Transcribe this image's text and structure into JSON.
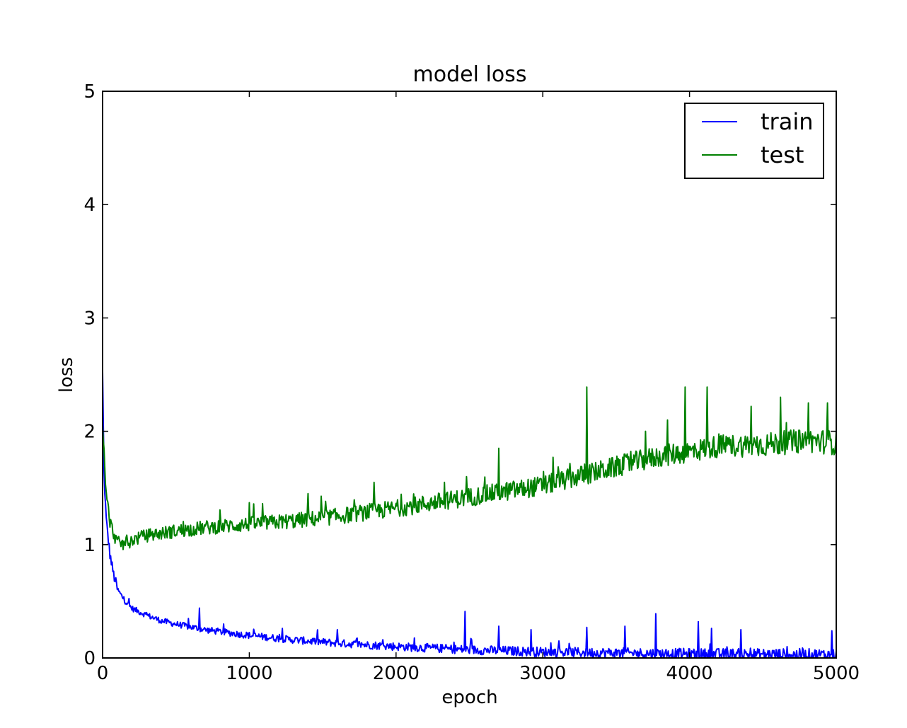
{
  "chart_data": {
    "type": "line",
    "title": "model loss",
    "xlabel": "epoch",
    "ylabel": "loss",
    "xlim": [
      0,
      5000
    ],
    "ylim": [
      0,
      5
    ],
    "xticks": [
      "0",
      "1000",
      "2000",
      "3000",
      "4000",
      "5000"
    ],
    "yticks": [
      "0",
      "1",
      "2",
      "3",
      "4",
      "5"
    ],
    "grid": false,
    "legend": {
      "position": "top-right"
    },
    "series": [
      {
        "name": "train",
        "color": "#0000ff",
        "x": [
          0,
          10,
          25,
          50,
          75,
          100,
          150,
          200,
          300,
          400,
          500,
          700,
          1000,
          1300,
          1600,
          2000,
          2500,
          3000,
          3500,
          4000,
          4500,
          5000
        ],
        "y": [
          2.5,
          1.6,
          1.2,
          0.9,
          0.72,
          0.6,
          0.5,
          0.43,
          0.37,
          0.32,
          0.29,
          0.24,
          0.19,
          0.15,
          0.12,
          0.09,
          0.06,
          0.04,
          0.03,
          0.02,
          0.015,
          0.01
        ],
        "spikes": [
          {
            "x": 660,
            "y": 0.44
          },
          {
            "x": 1600,
            "y": 0.25
          },
          {
            "x": 2470,
            "y": 0.41
          },
          {
            "x": 2700,
            "y": 0.28
          },
          {
            "x": 2920,
            "y": 0.25
          },
          {
            "x": 3300,
            "y": 0.27
          },
          {
            "x": 3560,
            "y": 0.28
          },
          {
            "x": 3770,
            "y": 0.39
          },
          {
            "x": 4060,
            "y": 0.32
          },
          {
            "x": 4150,
            "y": 0.26
          },
          {
            "x": 4350,
            "y": 0.25
          },
          {
            "x": 4970,
            "y": 0.24
          }
        ]
      },
      {
        "name": "test",
        "color": "#008000",
        "x": [
          0,
          20,
          50,
          80,
          100,
          150,
          200,
          300,
          500,
          700,
          1000,
          1300,
          1600,
          2000,
          2500,
          3000,
          3300,
          3600,
          3800,
          4000,
          4200,
          4500,
          4800,
          5000
        ],
        "y": [
          2.1,
          1.5,
          1.2,
          1.08,
          1.02,
          1.0,
          1.04,
          1.08,
          1.12,
          1.15,
          1.18,
          1.21,
          1.25,
          1.32,
          1.42,
          1.52,
          1.62,
          1.72,
          1.78,
          1.82,
          1.87,
          1.88,
          1.92,
          1.9
        ],
        "spikes": [
          {
            "x": 1000,
            "y": 1.37
          },
          {
            "x": 1400,
            "y": 1.45
          },
          {
            "x": 1850,
            "y": 1.55
          },
          {
            "x": 2700,
            "y": 1.85
          },
          {
            "x": 3070,
            "y": 1.77
          },
          {
            "x": 3300,
            "y": 2.39
          },
          {
            "x": 3700,
            "y": 2.0
          },
          {
            "x": 3850,
            "y": 2.1
          },
          {
            "x": 3970,
            "y": 2.39
          },
          {
            "x": 4120,
            "y": 2.39
          },
          {
            "x": 4420,
            "y": 2.22
          },
          {
            "x": 4620,
            "y": 2.3
          },
          {
            "x": 4810,
            "y": 2.25
          },
          {
            "x": 4940,
            "y": 2.25
          }
        ]
      }
    ]
  }
}
